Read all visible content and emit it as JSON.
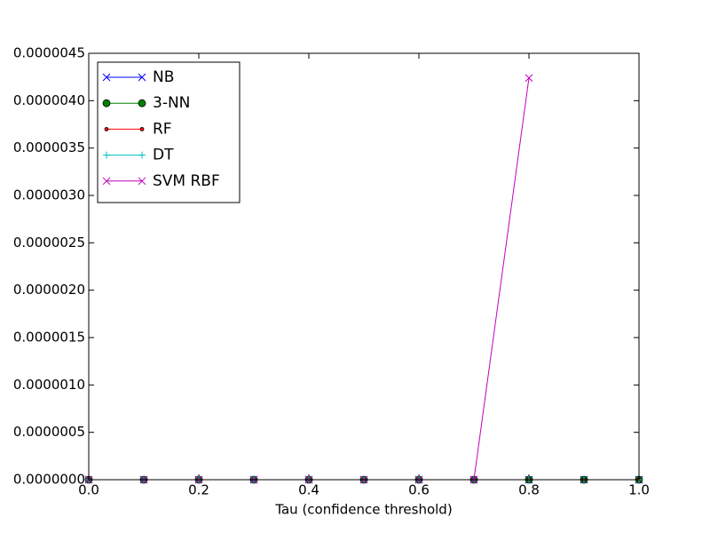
{
  "chart_data": {
    "type": "line",
    "xlabel": "Tau (confidence threshold)",
    "x": [
      0,
      0.1,
      0.2,
      0.3,
      0.4,
      0.5,
      0.6,
      0.7,
      0.8,
      0.9,
      1.0
    ],
    "xlim": [
      0,
      1
    ],
    "xticks": [
      {
        "value": 0,
        "label": "0.0"
      },
      0.2,
      0.4,
      0.6,
      0.8,
      {
        "value": 1,
        "label": "1.0"
      }
    ],
    "ylim": [
      0,
      4.5e-06
    ],
    "yticks": [
      {
        "value": 0,
        "label": "0.0000000"
      },
      {
        "value": 5e-07,
        "label": "0.0000005"
      },
      {
        "value": 1e-06,
        "label": "0.0000010"
      },
      {
        "value": 1.5e-06,
        "label": "0.0000015"
      },
      {
        "value": 2e-06,
        "label": "0.0000020"
      },
      {
        "value": 2.5e-06,
        "label": "0.0000025"
      },
      {
        "value": 3e-06,
        "label": "0.0000030"
      },
      {
        "value": 3.5e-06,
        "label": "0.0000035"
      },
      {
        "value": 4e-06,
        "label": "0.0000040"
      },
      {
        "value": 4.5e-06,
        "label": "0.0000045"
      }
    ],
    "legend": "upper left",
    "series": [
      {
        "name": "NB",
        "color": "#0000ff",
        "marker": "x",
        "values": [
          0,
          0,
          0,
          0,
          0,
          0,
          0,
          0,
          0,
          0,
          0
        ]
      },
      {
        "name": "3-NN",
        "color": "#008000",
        "marker": "o",
        "values": [
          0,
          0,
          0,
          0,
          0,
          0,
          0,
          0,
          0,
          0,
          0
        ]
      },
      {
        "name": "RF",
        "color": "#ff0000",
        "marker": ".",
        "values": [
          0,
          0,
          0,
          0,
          0,
          0,
          0,
          0,
          0,
          0,
          0
        ]
      },
      {
        "name": "DT",
        "color": "#00bfbf",
        "marker": "+",
        "values": [
          0,
          0,
          0,
          0,
          0,
          0,
          0,
          0,
          0,
          0,
          0
        ]
      },
      {
        "name": "SVM RBF",
        "color": "#bf00bf",
        "marker": "x",
        "values": [
          0,
          0,
          0,
          0,
          0,
          0,
          0,
          0,
          4.24e-06,
          null,
          null
        ]
      }
    ]
  }
}
